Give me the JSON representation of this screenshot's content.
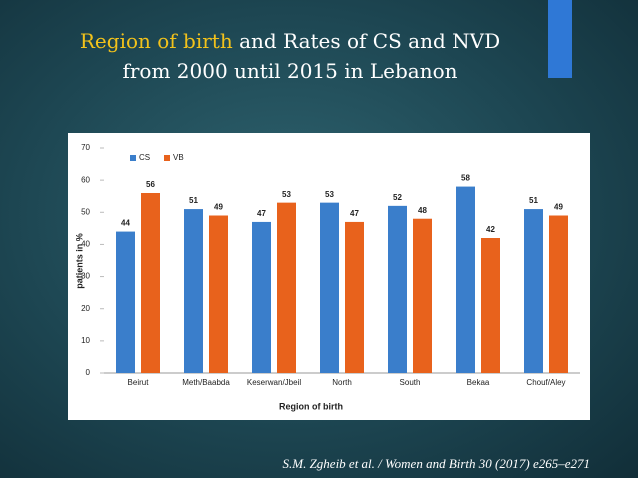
{
  "slide": {
    "title_highlight": "Region of birth",
    "title_rest": "and Rates of CS and NVD",
    "title_line2": "from 2000 until 2015 in Lebanon",
    "citation": "S.M. Zgheib et al. / Women and Birth 30 (2017) e265–e271"
  },
  "chart_data": {
    "type": "bar",
    "x_label": "Region of birth",
    "y_label": "patients in %",
    "categories": [
      "Beirut",
      "Meth/Baabda",
      "Keserwan/Jbeil",
      "North",
      "South",
      "Bekaa",
      "Chouf/Aley"
    ],
    "series": [
      {
        "name": "CS",
        "color": "#3a7ecb",
        "values": [
          44,
          51,
          47,
          53,
          52,
          58,
          51
        ]
      },
      {
        "name": "VB",
        "color": "#e8621c",
        "values": [
          56,
          49,
          53,
          47,
          48,
          42,
          49
        ]
      }
    ],
    "ylim": [
      0,
      70
    ],
    "yticks": [
      0,
      10,
      20,
      30,
      40,
      50,
      60,
      70
    ],
    "legend": "top-left",
    "data_labels": true
  }
}
